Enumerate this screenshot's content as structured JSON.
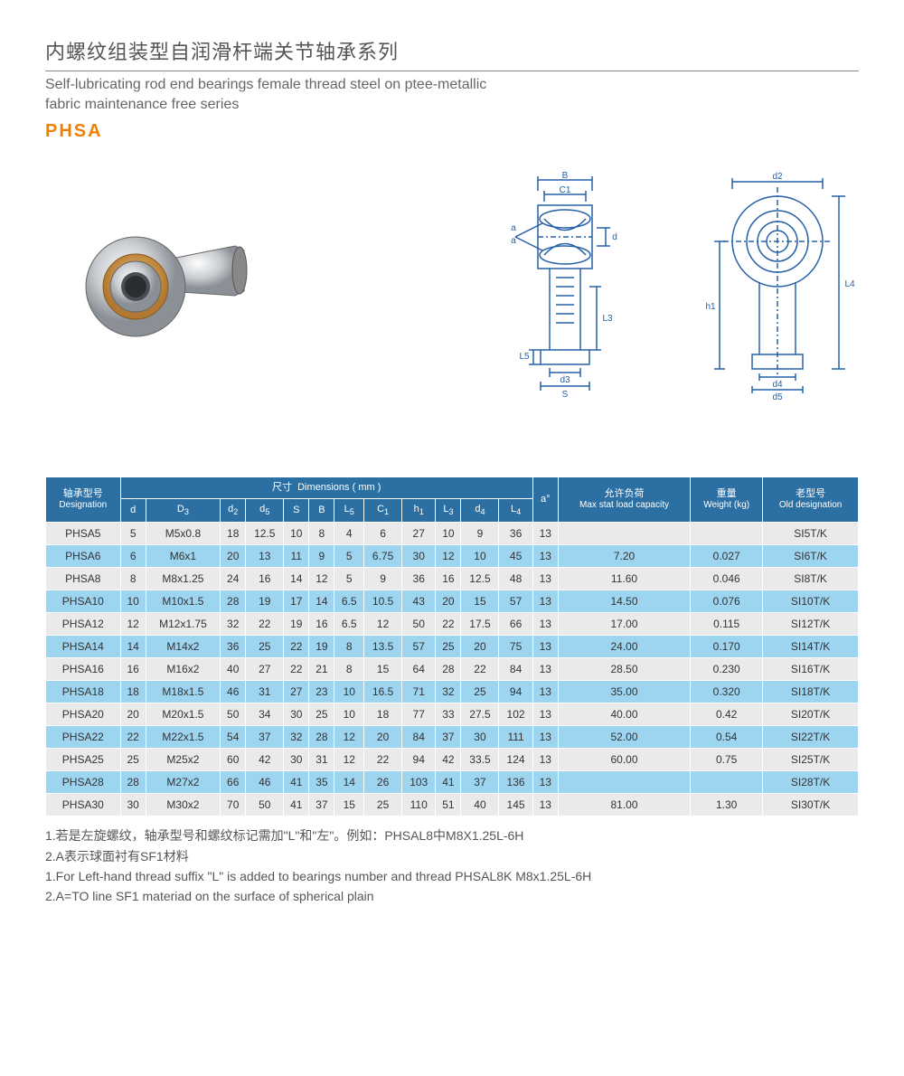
{
  "header": {
    "title_cn": "内螺纹组装型自润滑杆端关节轴承系列",
    "title_en_line1": "Self-lubricating rod end bearings female thread steel on ptee-metallic",
    "title_en_line2": "fabric maintenance free series",
    "series": "PHSA"
  },
  "diagram_labels": {
    "B": "B",
    "C1": "C1",
    "a": "a",
    "d": "d",
    "L5": "L5",
    "d3": "d3",
    "S": "S",
    "L3": "L3",
    "d2": "d2",
    "h1": "h1",
    "L4": "L4",
    "d4": "d4",
    "d5": "d5"
  },
  "table": {
    "header_groups": {
      "designation_cn": "轴承型号",
      "designation_en": "Designation",
      "dimensions_cn": "尺寸",
      "dimensions_en": "Dimensions ( mm )",
      "a_deg": "a°",
      "max_stat_cn": "允许负荷",
      "max_stat_en": "Max stat load capacity",
      "weight_cn": "重量",
      "weight_en": "Weight (kg)",
      "old_cn": "老型号",
      "old_en": "Old designation"
    },
    "dim_cols": [
      "d",
      "D3",
      "d2",
      "d5",
      "S",
      "B",
      "L5",
      "C1",
      "h1",
      "L3",
      "d4",
      "L4"
    ],
    "rows": [
      {
        "desig": "PHSA5",
        "d": "5",
        "D3": "M5x0.8",
        "d2": "18",
        "d5": "12.5",
        "S": "10",
        "B": "8",
        "L5": "4",
        "C1": "6",
        "h1": "27",
        "L3": "10",
        "d4": "9",
        "L4": "36",
        "a": "13",
        "max": "",
        "wt": "",
        "old": "SI5T/K"
      },
      {
        "desig": "PHSA6",
        "d": "6",
        "D3": "M6x1",
        "d2": "20",
        "d5": "13",
        "S": "11",
        "B": "9",
        "L5": "5",
        "C1": "6.75",
        "h1": "30",
        "L3": "12",
        "d4": "10",
        "L4": "45",
        "a": "13",
        "max": "7.20",
        "wt": "0.027",
        "old": "SI6T/K"
      },
      {
        "desig": "PHSA8",
        "d": "8",
        "D3": "M8x1.25",
        "d2": "24",
        "d5": "16",
        "S": "14",
        "B": "12",
        "L5": "5",
        "C1": "9",
        "h1": "36",
        "L3": "16",
        "d4": "12.5",
        "L4": "48",
        "a": "13",
        "max": "11.60",
        "wt": "0.046",
        "old": "SI8T/K"
      },
      {
        "desig": "PHSA10",
        "d": "10",
        "D3": "M10x1.5",
        "d2": "28",
        "d5": "19",
        "S": "17",
        "B": "14",
        "L5": "6.5",
        "C1": "10.5",
        "h1": "43",
        "L3": "20",
        "d4": "15",
        "L4": "57",
        "a": "13",
        "max": "14.50",
        "wt": "0.076",
        "old": "SI10T/K"
      },
      {
        "desig": "PHSA12",
        "d": "12",
        "D3": "M12x1.75",
        "d2": "32",
        "d5": "22",
        "S": "19",
        "B": "16",
        "L5": "6.5",
        "C1": "12",
        "h1": "50",
        "L3": "22",
        "d4": "17.5",
        "L4": "66",
        "a": "13",
        "max": "17.00",
        "wt": "0.115",
        "old": "SI12T/K"
      },
      {
        "desig": "PHSA14",
        "d": "14",
        "D3": "M14x2",
        "d2": "36",
        "d5": "25",
        "S": "22",
        "B": "19",
        "L5": "8",
        "C1": "13.5",
        "h1": "57",
        "L3": "25",
        "d4": "20",
        "L4": "75",
        "a": "13",
        "max": "24.00",
        "wt": "0.170",
        "old": "SI14T/K"
      },
      {
        "desig": "PHSA16",
        "d": "16",
        "D3": "M16x2",
        "d2": "40",
        "d5": "27",
        "S": "22",
        "B": "21",
        "L5": "8",
        "C1": "15",
        "h1": "64",
        "L3": "28",
        "d4": "22",
        "L4": "84",
        "a": "13",
        "max": "28.50",
        "wt": "0.230",
        "old": "SI16T/K"
      },
      {
        "desig": "PHSA18",
        "d": "18",
        "D3": "M18x1.5",
        "d2": "46",
        "d5": "31",
        "S": "27",
        "B": "23",
        "L5": "10",
        "C1": "16.5",
        "h1": "71",
        "L3": "32",
        "d4": "25",
        "L4": "94",
        "a": "13",
        "max": "35.00",
        "wt": "0.320",
        "old": "SI18T/K"
      },
      {
        "desig": "PHSA20",
        "d": "20",
        "D3": "M20x1.5",
        "d2": "50",
        "d5": "34",
        "S": "30",
        "B": "25",
        "L5": "10",
        "C1": "18",
        "h1": "77",
        "L3": "33",
        "d4": "27.5",
        "L4": "102",
        "a": "13",
        "max": "40.00",
        "wt": "0.42",
        "old": "SI20T/K"
      },
      {
        "desig": "PHSA22",
        "d": "22",
        "D3": "M22x1.5",
        "d2": "54",
        "d5": "37",
        "S": "32",
        "B": "28",
        "L5": "12",
        "C1": "20",
        "h1": "84",
        "L3": "37",
        "d4": "30",
        "L4": "111",
        "a": "13",
        "max": "52.00",
        "wt": "0.54",
        "old": "SI22T/K"
      },
      {
        "desig": "PHSA25",
        "d": "25",
        "D3": "M25x2",
        "d2": "60",
        "d5": "42",
        "S": "30",
        "B": "31",
        "L5": "12",
        "C1": "22",
        "h1": "94",
        "L3": "42",
        "d4": "33.5",
        "L4": "124",
        "a": "13",
        "max": "60.00",
        "wt": "0.75",
        "old": "SI25T/K"
      },
      {
        "desig": "PHSA28",
        "d": "28",
        "D3": "M27x2",
        "d2": "66",
        "d5": "46",
        "S": "41",
        "B": "35",
        "L5": "14",
        "C1": "26",
        "h1": "103",
        "L3": "41",
        "d4": "37",
        "L4": "136",
        "a": "13",
        "max": "",
        "wt": "",
        "old": "SI28T/K"
      },
      {
        "desig": "PHSA30",
        "d": "30",
        "D3": "M30x2",
        "d2": "70",
        "d5": "50",
        "S": "41",
        "B": "37",
        "L5": "15",
        "C1": "25",
        "h1": "110",
        "L3": "51",
        "d4": "40",
        "L4": "145",
        "a": "13",
        "max": "81.00",
        "wt": "1.30",
        "old": "SI30T/K"
      }
    ]
  },
  "notes": {
    "n1": "1.若是左旋螺纹，轴承型号和螺纹标记需加\"L\"和\"左\"。例如：PHSAL8中M8X1.25L-6H",
    "n2": "2.A表示球面衬有SF1材料",
    "n3": "1.For Left-hand thread suffix \"L\" is added to bearings number and thread PHSAL8K M8x1.25L-6H",
    "n4": "2.A=TO line SF1 materiad on the surface of spherical plain"
  },
  "colors": {
    "header_bg": "#2b6fa3",
    "row_odd": "#eaeaea",
    "row_even": "#9dd4f0",
    "accent": "#f08000",
    "diagram_stroke": "#2560a8"
  }
}
